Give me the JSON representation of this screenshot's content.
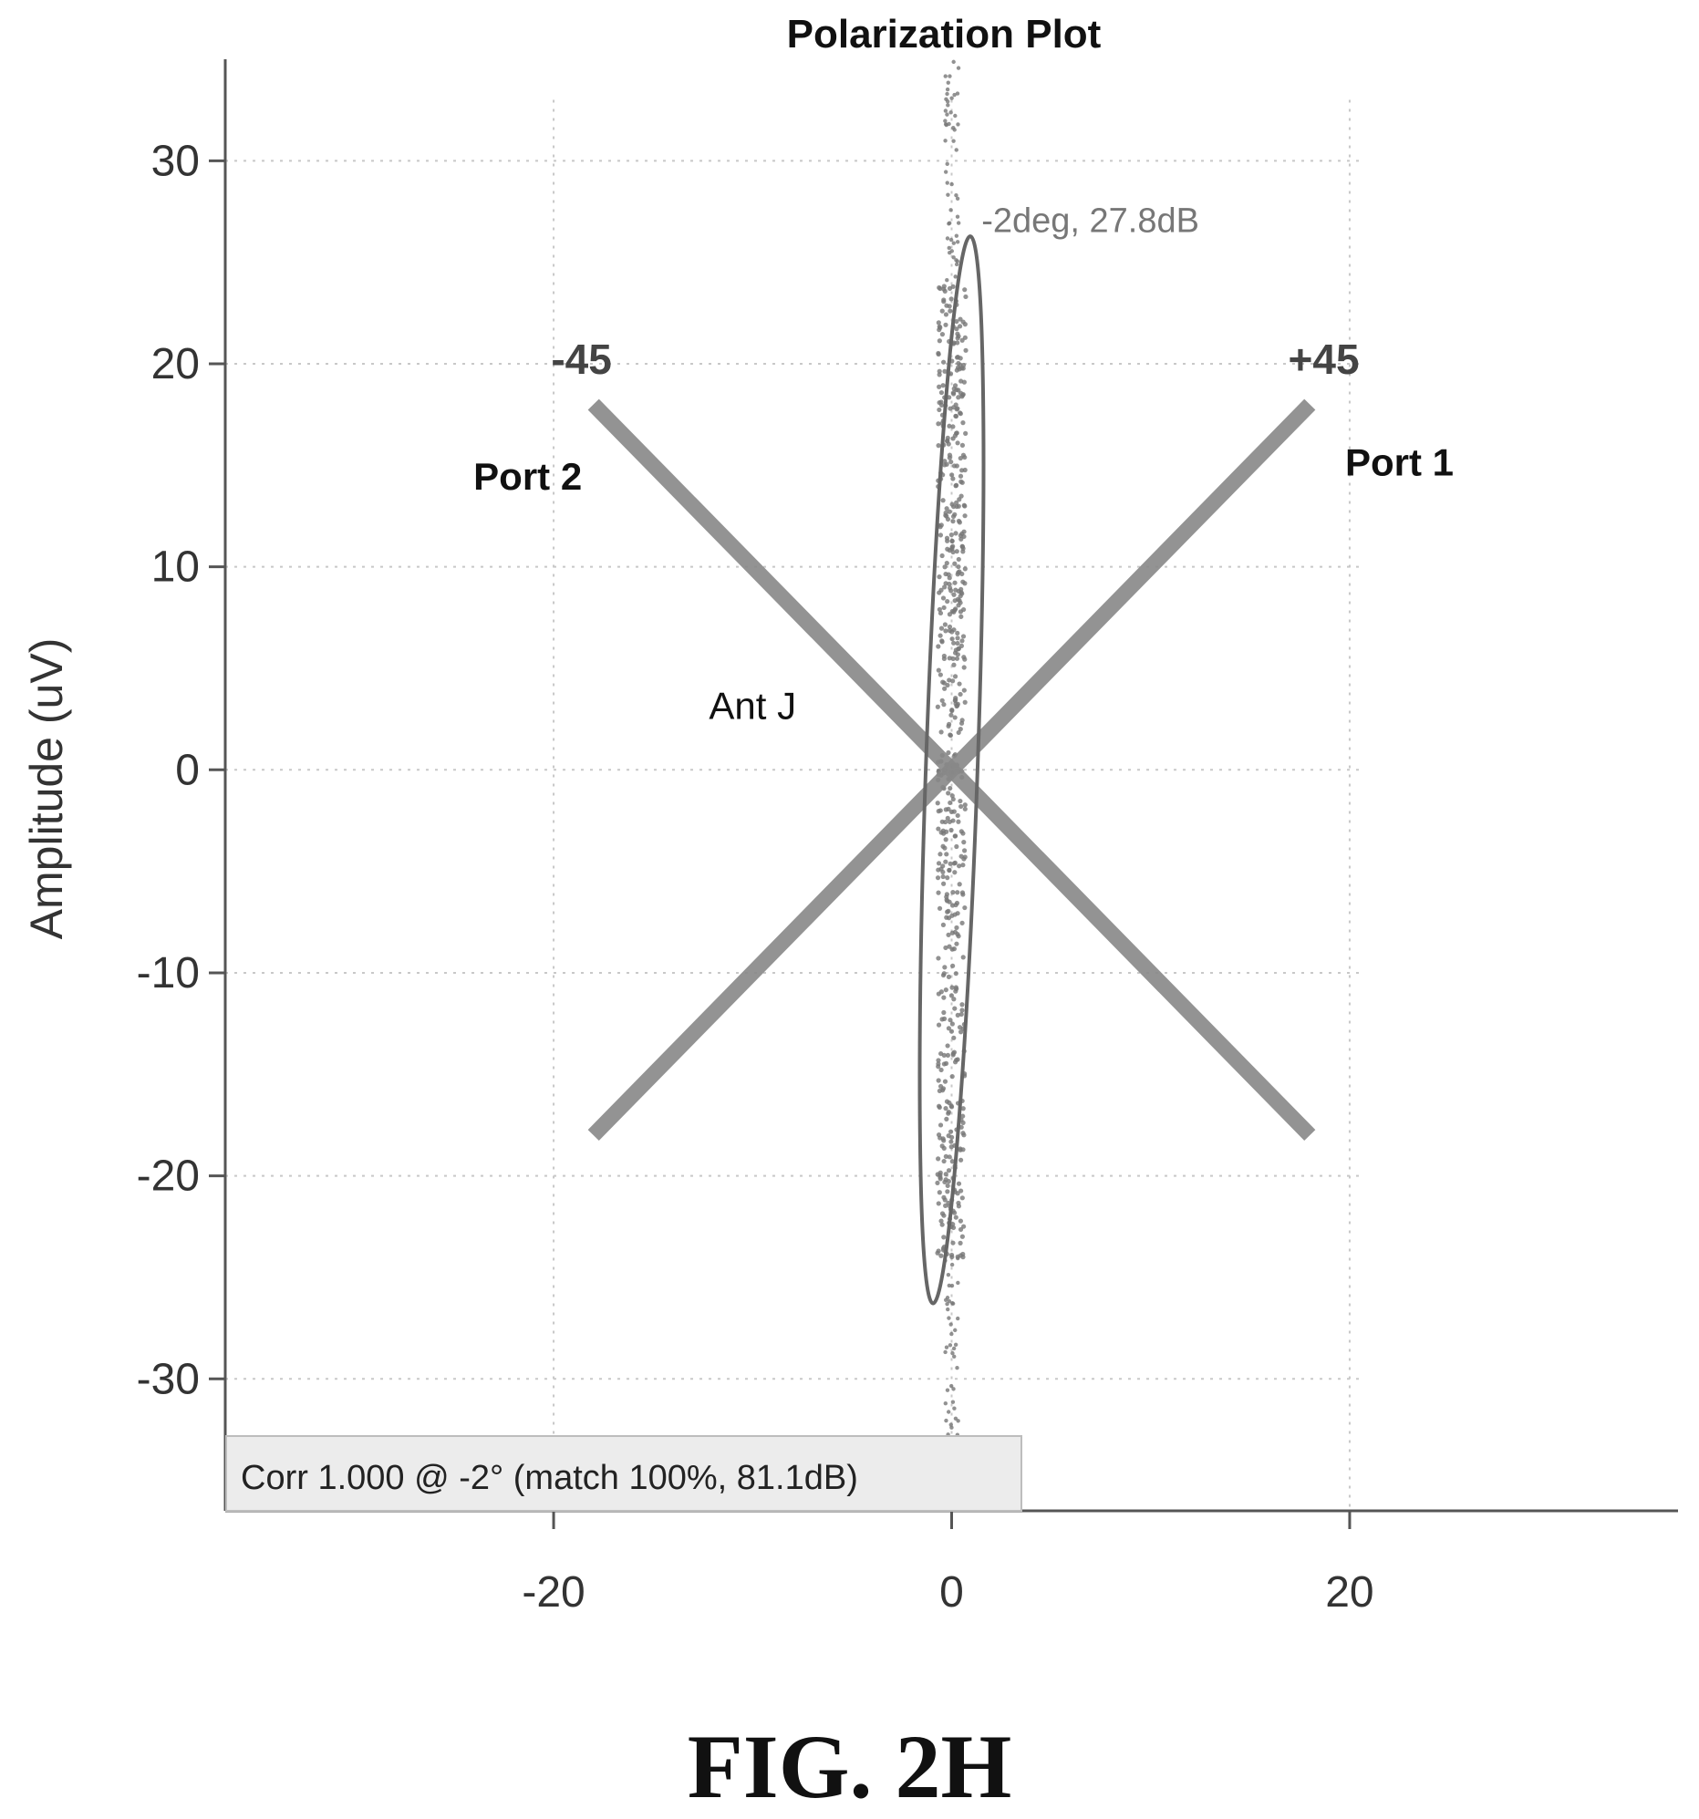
{
  "chart_data": {
    "type": "scatter",
    "title": "Polarization Plot",
    "xlabel": "",
    "ylabel": "Amplitude (uV)",
    "xlim": [
      -36.5,
      36.5
    ],
    "ylim": [
      -36.5,
      35
    ],
    "x_ticks": [
      -20,
      0,
      20
    ],
    "y_ticks": [
      30,
      20,
      10,
      0,
      -10,
      -20,
      -30
    ],
    "grid": true,
    "lines": [
      {
        "name": "-45",
        "angle_deg": -45,
        "x": [
          -18,
          18
        ],
        "y": [
          18,
          -18
        ],
        "color": "#888888"
      },
      {
        "name": "+45",
        "angle_deg": 45,
        "x": [
          -18,
          18
        ],
        "y": [
          -18,
          18
        ],
        "color": "#888888"
      }
    ],
    "ellipse": {
      "center": [
        0,
        0
      ],
      "semi_major": 26.3,
      "semi_minor": 1.3,
      "tilt_deg": -2,
      "label": "-2deg, 27.8dB"
    },
    "scatter_cloud": {
      "x_range": [
        -1.5,
        1.5
      ],
      "y_range": [
        -35,
        35
      ],
      "color": "#777777"
    },
    "annotations": [
      {
        "text": "-45",
        "x": -18.6,
        "y": 19.5,
        "bold": true
      },
      {
        "text": "+45",
        "x": 18.7,
        "y": 19.5,
        "bold": true
      },
      {
        "text": "Port 2",
        "x": -21.3,
        "y": 13.8,
        "bold": true
      },
      {
        "text": "Port 1",
        "x": 22.5,
        "y": 14.5,
        "bold": true
      },
      {
        "text": "Ant J",
        "x": -10,
        "y": 2.5,
        "bold": false
      },
      {
        "text": "-2deg, 27.8dB",
        "x": 1.5,
        "y": 26.5,
        "bold": false
      }
    ],
    "info_box": "Corr 1.000 @   -2° (match 100%, 81.1dB)"
  },
  "figure_label": "FIG. 2H"
}
